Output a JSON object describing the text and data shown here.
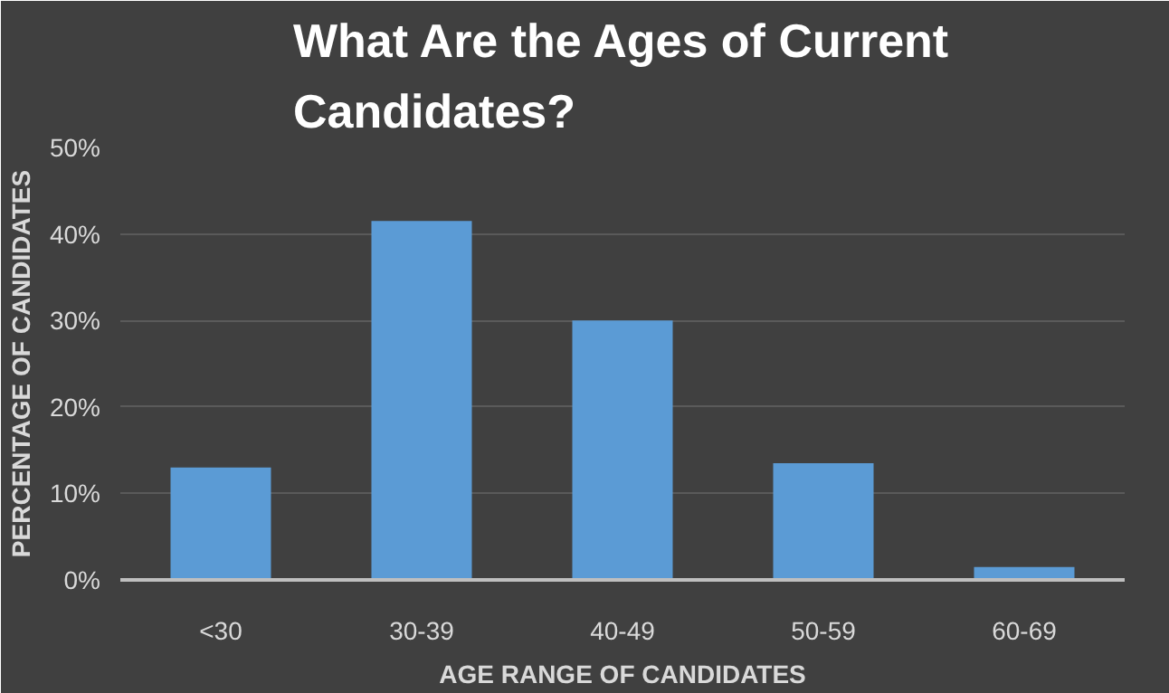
{
  "chart_data": {
    "type": "bar",
    "title": "What Are the Ages of Current\nCandidates?",
    "xlabel": "AGE RANGE OF CANDIDATES",
    "ylabel": "PERCENTAGE OF CANDIDATES",
    "categories": [
      "<30",
      "30-39",
      "40-49",
      "50-59",
      "60-69"
    ],
    "series": [
      {
        "color": "#5b9bd5",
        "values": [
          13,
          41.5,
          30,
          13.5,
          1.5
        ]
      }
    ],
    "ylim": [
      0,
      50
    ],
    "yticks": [
      {
        "value": 0,
        "label": "0%"
      },
      {
        "value": 10,
        "label": "10%"
      },
      {
        "value": 20,
        "label": "20%"
      },
      {
        "value": 30,
        "label": "30%"
      },
      {
        "value": 40,
        "label": "40%"
      },
      {
        "value": 50,
        "label": "50%"
      }
    ],
    "grid": "y"
  }
}
